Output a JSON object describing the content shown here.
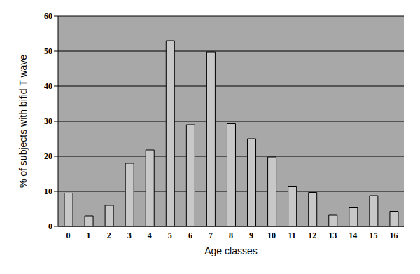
{
  "chart_data": {
    "type": "bar",
    "x_label": "Age classes",
    "y_label": "% of subjects with bifid T wave",
    "categories": [
      "0",
      "1",
      "2",
      "3",
      "4",
      "5",
      "6",
      "7",
      "8",
      "9",
      "10",
      "11",
      "12",
      "13",
      "14",
      "15",
      "16"
    ],
    "values": [
      9.5,
      3,
      6,
      18,
      21.8,
      53,
      29,
      49.8,
      29.3,
      25,
      19.8,
      11.3,
      9.7,
      3.2,
      5.3,
      8.8,
      4.3
    ],
    "color": "#c8c8c8",
    "ylim": [
      0,
      60
    ],
    "yticks": [
      0,
      10,
      20,
      30,
      40,
      50,
      60
    ],
    "grid": true
  }
}
